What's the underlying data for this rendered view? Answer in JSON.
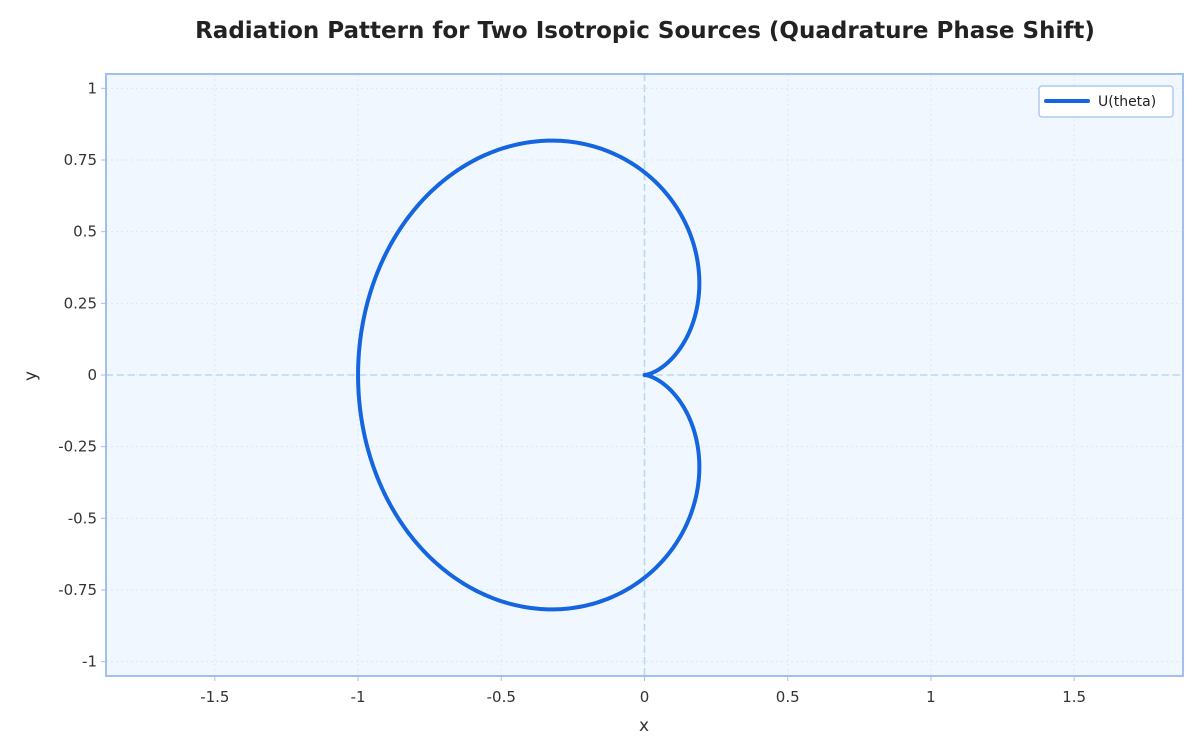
{
  "chart_data": {
    "type": "line",
    "title": "Radiation Pattern for Two Isotropic Sources (Quadrature Phase Shift)",
    "xlabel": "x",
    "ylabel": "y",
    "xlim": [
      -1.88,
      1.88
    ],
    "ylim": [
      -1.05,
      1.05
    ],
    "xticks": [
      -1.5,
      -1,
      -0.5,
      0,
      0.5,
      1,
      1.5
    ],
    "xtick_labels": [
      "-1.5",
      "-1",
      "-0.5",
      "0",
      "0.5",
      "1",
      "1.5"
    ],
    "yticks": [
      1,
      0.75,
      0.5,
      0.25,
      0,
      -0.25,
      -0.5,
      -0.75,
      -1
    ],
    "ytick_labels": [
      "1",
      "0.75",
      "0.5",
      "0.25",
      "0",
      "-0.25",
      "-0.5",
      "-0.75",
      "-1"
    ],
    "grid": true,
    "reference_lines": [
      "x = 0",
      "y = 0"
    ],
    "legend_position": "top-right",
    "series": [
      {
        "name": "U(theta)",
        "color": "#1565e0",
        "equation": "r = |cos(pi/4 * (1 + cos(theta)))|, x = r*cos(theta), y = r*sin(theta)",
        "theta_range_deg": [
          0,
          360
        ],
        "points": [
          {
            "theta_deg": 0,
            "x": 0.0,
            "y": 0.0
          },
          {
            "theta_deg": 30,
            "x": 0.05,
            "y": 0.03
          },
          {
            "theta_deg": 60,
            "x": 0.19,
            "y": 0.33
          },
          {
            "theta_deg": 90,
            "x": 0.0,
            "y": 0.71
          },
          {
            "theta_deg": 120,
            "x": -0.46,
            "y": 0.8
          },
          {
            "theta_deg": 150,
            "x": -0.85,
            "y": 0.49
          },
          {
            "theta_deg": 180,
            "x": -1.0,
            "y": 0.0
          },
          {
            "theta_deg": 210,
            "x": -0.85,
            "y": -0.49
          },
          {
            "theta_deg": 240,
            "x": -0.46,
            "y": -0.8
          },
          {
            "theta_deg": 270,
            "x": 0.0,
            "y": -0.71
          },
          {
            "theta_deg": 300,
            "x": 0.19,
            "y": -0.33
          },
          {
            "theta_deg": 330,
            "x": 0.05,
            "y": -0.03
          },
          {
            "theta_deg": 360,
            "x": 0.0,
            "y": 0.0
          }
        ]
      }
    ]
  },
  "colors": {
    "plot_background": "#f1f7fe",
    "plot_border": "#a2bff2",
    "grid": "#dde6f2",
    "reference_line": "#bcd8ee",
    "curve": "#1565e0",
    "legend_border": "#aecaf2"
  }
}
